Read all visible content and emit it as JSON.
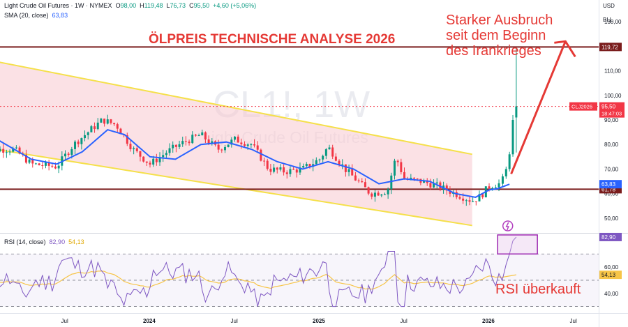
{
  "header": {
    "symbol_line": "Light Crude Oil Futures · 1W · NYMEX",
    "open_label": "O",
    "open": "98,00",
    "high_label": "H",
    "high": "119,48",
    "low_label": "L",
    "low": "76,73",
    "close_label": "C",
    "close": "95,50",
    "change": "+4,60 (+5,06%)",
    "sma_label": "SMA (20, close)",
    "sma_value": "63,83"
  },
  "currency": {
    "code": "USD",
    "unit": "BLL"
  },
  "annotations": {
    "title": "ÖLPREIS TECHNISCHE ANALYSE 2026",
    "breakout_lines": [
      "Starker Ausbruch",
      "seit dem Beginn",
      "des Irankrieges"
    ],
    "rsi_note": "RSI überkauft"
  },
  "watermark": {
    "ticker": "CL1!, 1W",
    "name": "Light Crude Oil Futures"
  },
  "rsi_header": {
    "label": "RSI (14, close)",
    "rsi": "82,90",
    "ma": "54,13"
  },
  "colors": {
    "up": "#089981",
    "down": "#f23645",
    "sma": "#2962ff",
    "rsi": "#7e57c2",
    "rsi_ma": "#f7c548",
    "annotation": "#e53935",
    "level_line": "#7a1c1c"
  },
  "chart_data": {
    "type": "candlestick",
    "price_axis": {
      "range": [
        44,
        136
      ],
      "ticks": [
        "130,00",
        "110,00",
        "100,00",
        "90,00",
        "80,00",
        "70,00",
        "60,00",
        "50,00"
      ]
    },
    "time_axis": {
      "labels": [
        "Jul",
        "2024",
        "Jul",
        "2025",
        "Jul",
        "2026",
        "Jul"
      ]
    },
    "last_price": {
      "label": "CLJ2026",
      "value": "95,50",
      "countdown": "18:47:03"
    },
    "levels": [
      {
        "value": 119.72,
        "label": "119,72"
      },
      {
        "value": 61.78,
        "label": "61,78"
      }
    ],
    "sma_badge": {
      "value": 63.83,
      "label": "63,83"
    },
    "channel": {
      "upper": [
        [
          2023.0,
          115
        ],
        [
          2025.9,
          76
        ]
      ],
      "lower": [
        [
          2023.0,
          79
        ],
        [
          2025.9,
          47
        ]
      ]
    },
    "sma": [
      [
        2023.1,
        82
      ],
      [
        2023.3,
        74
      ],
      [
        2023.45,
        72
      ],
      [
        2023.6,
        77
      ],
      [
        2023.75,
        86
      ],
      [
        2023.85,
        84
      ],
      [
        2024.0,
        75
      ],
      [
        2024.15,
        74
      ],
      [
        2024.3,
        80
      ],
      [
        2024.45,
        81
      ],
      [
        2024.6,
        78
      ],
      [
        2024.75,
        73
      ],
      [
        2024.9,
        70
      ],
      [
        2025.05,
        73
      ],
      [
        2025.2,
        70
      ],
      [
        2025.35,
        64
      ],
      [
        2025.5,
        66
      ],
      [
        2025.65,
        65
      ],
      [
        2025.8,
        60
      ],
      [
        2025.92,
        58.5
      ],
      [
        2026.0,
        61.5
      ],
      [
        2026.05,
        62
      ],
      [
        2026.12,
        63.83
      ]
    ],
    "candles_summary": {
      "last": {
        "open": 98.0,
        "high": 119.48,
        "low": 76.73,
        "close": 95.5
      }
    },
    "rsi": {
      "range": [
        25,
        85
      ],
      "ticks": [
        "60,00",
        "40,00"
      ],
      "levels": [
        70,
        50,
        30
      ],
      "last": 82.9,
      "ma_last": 54.13,
      "overbought_label": "82,90",
      "ma_label": "54,13"
    }
  }
}
